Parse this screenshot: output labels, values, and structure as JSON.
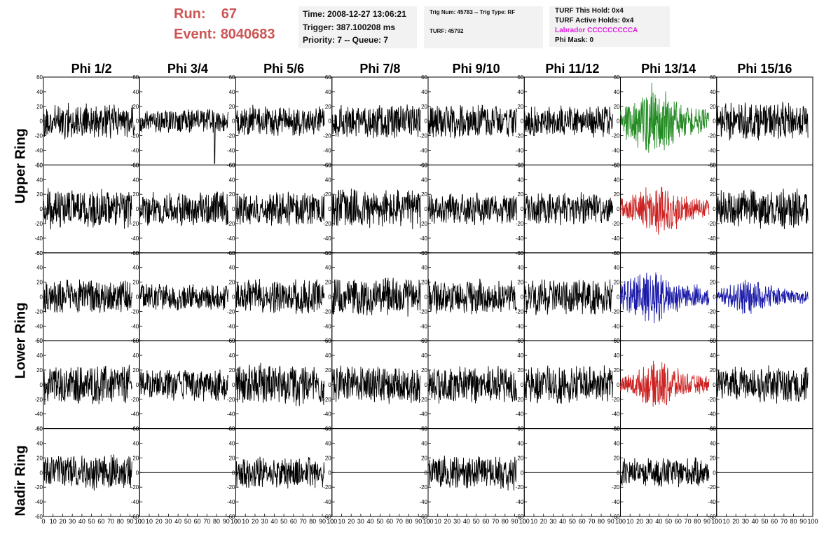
{
  "header": {
    "run_label": "Run:",
    "run_value": "67",
    "event_label": "Event:",
    "event_value": "8040683",
    "time": "Time: 2008-12-27 13:06:21",
    "trigger": "Trigger: 387.100208 ms",
    "priority": "Priority: 7 -- Queue: 7",
    "trig_num": "Trig Num: 45783 -- Trig Type: RF",
    "turf": "TURF: 45792",
    "turf_this_hold": "TURF This Hold: 0x4",
    "turf_active_holds": "TURF Active Holds: 0x4",
    "labrador": "Labrador CCCCCCCCCA",
    "phi_mask": "Phi Mask: 0"
  },
  "ring_labels": [
    "Upper Ring",
    "Lower Ring",
    "Nadir Ring"
  ],
  "colors": {
    "trace": "#000000",
    "header_red": "#cc5555",
    "green": "#228b22",
    "red": "#cc2222",
    "blue": "#1a1aaa",
    "labrador": "#e020e0",
    "box": "#f2f2f2"
  },
  "chart_data": {
    "type": "line",
    "columns": [
      "Phi 1/2",
      "Phi 3/4",
      "Phi 5/6",
      "Phi 7/8",
      "Phi 9/10",
      "Phi 11/12",
      "Phi 13/14",
      "Phi 15/16"
    ],
    "ylim": [
      -60,
      60
    ],
    "y_ticks": [
      -60,
      -40,
      -20,
      0,
      20,
      40,
      60
    ],
    "xlim": [
      0,
      100
    ],
    "x_tick_labels": [
      "0",
      "10",
      "20",
      "30",
      "40",
      "50",
      "60",
      "70",
      "80",
      "90",
      "100"
    ],
    "grid": false,
    "rows": [
      {
        "ring": "upper",
        "traces": [
          {
            "color": "black",
            "amp": 13,
            "seed": 11,
            "start": 0,
            "end": 95
          },
          {
            "color": "black",
            "amp": 9,
            "seed": 12,
            "start": 0,
            "end": 92,
            "spike": {
              "x": 78,
              "y": -58
            }
          },
          {
            "color": "black",
            "amp": 12,
            "seed": 13,
            "start": 0,
            "end": 92
          },
          {
            "color": "black",
            "amp": 13,
            "seed": 14,
            "start": 0,
            "end": 92
          },
          {
            "color": "black",
            "amp": 13,
            "seed": 15,
            "start": 0,
            "end": 92
          },
          {
            "color": "black",
            "amp": 12,
            "seed": 16,
            "start": 0,
            "end": 92
          },
          {
            "color": "green",
            "amp": 20,
            "seed": 17,
            "start": 0,
            "end": 92,
            "burst": 35
          },
          {
            "color": "black",
            "amp": 14,
            "seed": 18,
            "start": 0,
            "end": 95
          }
        ]
      },
      {
        "ring": "upper",
        "traces": [
          {
            "color": "black",
            "amp": 15,
            "seed": 21,
            "start": 0,
            "end": 92
          },
          {
            "color": "black",
            "amp": 13,
            "seed": 22,
            "start": 0,
            "end": 92
          },
          {
            "color": "black",
            "amp": 13,
            "seed": 23,
            "start": 0,
            "end": 92
          },
          {
            "color": "black",
            "amp": 15,
            "seed": 24,
            "start": 0,
            "end": 92
          },
          {
            "color": "black",
            "amp": 12,
            "seed": 25,
            "start": 0,
            "end": 92
          },
          {
            "color": "black",
            "amp": 12,
            "seed": 26,
            "start": 0,
            "end": 92
          },
          {
            "color": "red",
            "amp": 15,
            "seed": 27,
            "start": 0,
            "end": 92,
            "burst": 40
          },
          {
            "color": "black",
            "amp": 15,
            "seed": 28,
            "start": 0,
            "end": 95
          }
        ]
      },
      {
        "ring": "lower",
        "traces": [
          {
            "color": "black",
            "amp": 13,
            "seed": 31,
            "start": 0,
            "end": 92
          },
          {
            "color": "black",
            "amp": 10,
            "seed": 32,
            "start": 0,
            "end": 92
          },
          {
            "color": "black",
            "amp": 13,
            "seed": 33,
            "start": 0,
            "end": 92
          },
          {
            "color": "black",
            "amp": 14,
            "seed": 34,
            "start": 0,
            "end": 92
          },
          {
            "color": "black",
            "amp": 13,
            "seed": 35,
            "start": 0,
            "end": 92
          },
          {
            "color": "black",
            "amp": 13,
            "seed": 36,
            "start": 0,
            "end": 92
          },
          {
            "color": "blue",
            "amp": 16,
            "seed": 37,
            "start": 0,
            "end": 92,
            "burst": 30
          },
          {
            "color": "blue",
            "amp": 10,
            "seed": 38,
            "start": 0,
            "end": 95,
            "burst": 35
          }
        ]
      },
      {
        "ring": "lower",
        "traces": [
          {
            "color": "black",
            "amp": 15,
            "seed": 41,
            "start": 0,
            "end": 92
          },
          {
            "color": "black",
            "amp": 12,
            "seed": 42,
            "start": 0,
            "end": 92
          },
          {
            "color": "black",
            "amp": 16,
            "seed": 43,
            "start": 0,
            "end": 92
          },
          {
            "color": "black",
            "amp": 14,
            "seed": 44,
            "start": 0,
            "end": 92
          },
          {
            "color": "black",
            "amp": 14,
            "seed": 45,
            "start": 0,
            "end": 92
          },
          {
            "color": "black",
            "amp": 14,
            "seed": 46,
            "start": 0,
            "end": 92
          },
          {
            "color": "red",
            "amp": 13,
            "seed": 47,
            "start": 0,
            "end": 92,
            "burst": 40
          },
          {
            "color": "black",
            "amp": 14,
            "seed": 48,
            "start": 0,
            "end": 95
          }
        ]
      },
      {
        "ring": "nadir",
        "traces": [
          {
            "color": "black",
            "amp": 13,
            "seed": 51,
            "start": 0,
            "end": 92
          },
          {
            "color": "black",
            "amp": 0,
            "seed": 52,
            "start": 0,
            "end": 100,
            "flat": true
          },
          {
            "color": "black",
            "amp": 12,
            "seed": 53,
            "start": 0,
            "end": 92
          },
          {
            "color": "black",
            "amp": 0,
            "seed": 54,
            "start": 0,
            "end": 100,
            "flat": true
          },
          {
            "color": "black",
            "amp": 13,
            "seed": 55,
            "start": 0,
            "end": 92
          },
          {
            "color": "black",
            "amp": 0,
            "seed": 56,
            "start": 0,
            "end": 100,
            "flat": true
          },
          {
            "color": "black",
            "amp": 11,
            "seed": 57,
            "start": 0,
            "end": 92
          },
          {
            "color": "black",
            "amp": 0,
            "seed": 58,
            "start": 0,
            "end": 100,
            "flat": true
          }
        ]
      }
    ]
  }
}
